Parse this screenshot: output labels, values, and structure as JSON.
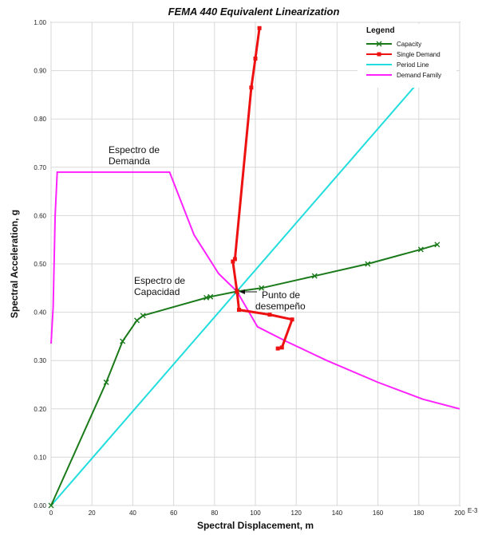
{
  "chart_data": {
    "type": "line",
    "title": "FEMA 440 Equivalent Linearization",
    "xlabel": "Spectral Displacement, m",
    "ylabel": "Spectral Acceleration, g",
    "x_unit_suffix": "E-3",
    "xlim": [
      0,
      200
    ],
    "ylim": [
      0,
      1.0
    ],
    "x_ticks": [
      "0",
      "20",
      "40",
      "60",
      "80",
      "100",
      "120",
      "140",
      "160",
      "180",
      "200"
    ],
    "y_ticks": [
      "0.00",
      "0.10",
      "0.20",
      "0.30",
      "0.40",
      "0.50",
      "0.60",
      "0.70",
      "0.80",
      "0.90",
      "1.00"
    ],
    "grid": true,
    "legend": {
      "title": "Legend",
      "position": "top-right",
      "entries": [
        "Capacity",
        "Single Demand",
        "Period Line",
        "Demand Family"
      ]
    },
    "series": [
      {
        "name": "Capacity",
        "color": "#1a7a1a",
        "marker": "x",
        "points": [
          [
            0,
            0
          ],
          [
            27,
            0.255
          ],
          [
            35,
            0.34
          ],
          [
            42,
            0.383
          ],
          [
            45,
            0.393
          ],
          [
            76,
            0.43
          ],
          [
            78,
            0.432
          ],
          [
            91,
            0.443
          ],
          [
            103,
            0.45
          ],
          [
            129,
            0.475
          ],
          [
            155,
            0.5
          ],
          [
            181,
            0.53
          ],
          [
            189,
            0.54
          ]
        ]
      },
      {
        "name": "Single Demand",
        "color": "#ee1111",
        "marker": "square",
        "points": [
          [
            102,
            0.988
          ],
          [
            100,
            0.925
          ],
          [
            98,
            0.865
          ],
          [
            90,
            0.51
          ],
          [
            89,
            0.505
          ],
          [
            91,
            0.443
          ],
          [
            92,
            0.405
          ],
          [
            107,
            0.395
          ],
          [
            118,
            0.385
          ],
          [
            113,
            0.327
          ],
          [
            111,
            0.325
          ]
        ]
      },
      {
        "name": "Period Line",
        "color": "#22dddd",
        "marker": "none",
        "points": [
          [
            0,
            0
          ],
          [
            198,
            0.965
          ]
        ]
      },
      {
        "name": "Demand Family",
        "color": "#ff22ff",
        "marker": "none",
        "points": [
          [
            0,
            0.335
          ],
          [
            1,
            0.41
          ],
          [
            2,
            0.6
          ],
          [
            3,
            0.69
          ],
          [
            58,
            0.69
          ],
          [
            70,
            0.56
          ],
          [
            82,
            0.48
          ],
          [
            91,
            0.443
          ],
          [
            101,
            0.37
          ],
          [
            115,
            0.34
          ],
          [
            135,
            0.3
          ],
          [
            160,
            0.255
          ],
          [
            182,
            0.22
          ],
          [
            200,
            0.2
          ]
        ]
      }
    ],
    "annotations": [
      {
        "lines": [
          "Espectro de",
          "Demanda"
        ]
      },
      {
        "lines": [
          "Espectro de",
          "Capacidad"
        ]
      },
      {
        "lines": [
          "Punto de",
          "desempeño"
        ]
      }
    ]
  }
}
